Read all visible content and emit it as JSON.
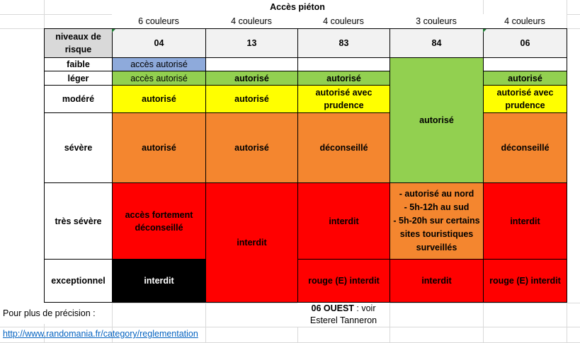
{
  "title": "Accès piéton",
  "header_label": "niveaux de risque",
  "columns": [
    {
      "colors": "6 couleurs",
      "dept": "04"
    },
    {
      "colors": "4 couleurs",
      "dept": "13"
    },
    {
      "colors": "4 couleurs",
      "dept": "83"
    },
    {
      "colors": "3 couleurs",
      "dept": "84"
    },
    {
      "colors": "4 couleurs",
      "dept": "06"
    }
  ],
  "levels": {
    "faible": "faible",
    "leger": "léger",
    "modere": "modéré",
    "severe": "sévère",
    "tres_severe": "très sévère",
    "exceptionnel": "exceptionnel"
  },
  "cells": {
    "c04_faible": "accès autorisé",
    "c04_leger": "accès autorisé",
    "c04_modere": "autorisé",
    "c04_severe": "autorisé",
    "c04_tres_severe": "accès fortement déconseillé",
    "c04_exceptionnel": "interdit",
    "c13_leger": "autorisé",
    "c13_modere": "autorisé",
    "c13_severe": "autorisé",
    "c13_tres_severe_exc": "interdit",
    "c83_leger": "autorisé",
    "c83_modere": "autorisé avec prudence",
    "c83_severe": "déconseillé",
    "c83_tres_severe": "interdit",
    "c83_exceptionnel": "rouge (E) interdit",
    "c84_autorise": "autorisé",
    "c84_tres_severe": [
      "- autorisé au nord",
      "- 5h-12h au sud",
      "- 5h-20h sur certains",
      "sites touristiques",
      "surveillés"
    ],
    "c84_exceptionnel": "interdit",
    "c06_leger": "autorisé",
    "c06_modere": "autorisé avec prudence",
    "c06_severe": "déconseillé",
    "c06_tres_severe": "interdit",
    "c06_exceptionnel": "rouge (E) interdit"
  },
  "footer": {
    "precision_label": "Pour plus de précision :",
    "note_bold": "06 OUEST",
    "note_rest": " : voir",
    "note_line2": "Esterel Tanneron",
    "link": "http://www.randomania.fr/category/reglementation"
  }
}
